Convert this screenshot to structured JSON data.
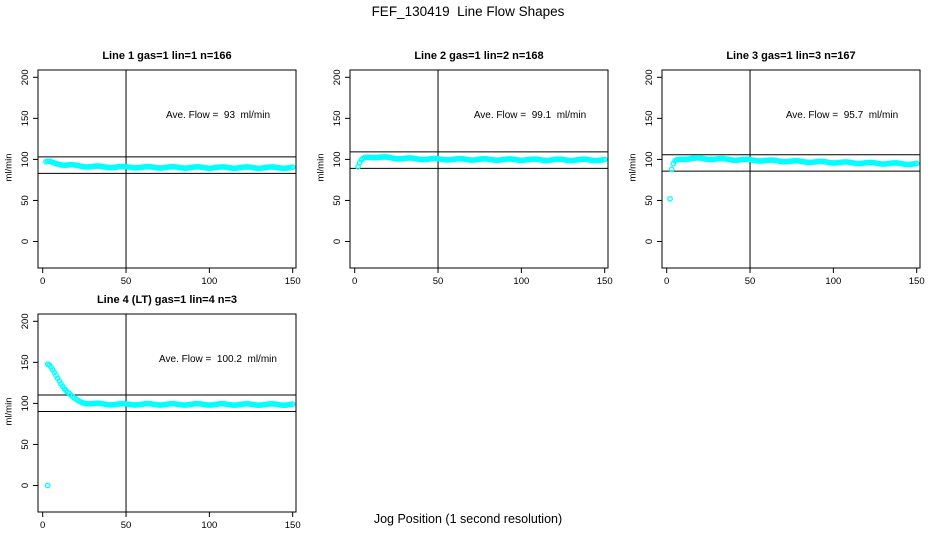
{
  "header": {
    "title": "FEF_130419  Line Flow Shapes"
  },
  "footer": {
    "xlabel": "Jog Position (1 second resolution)"
  },
  "colors": {
    "point": "#00FFFF",
    "line": "#000000",
    "text": "#000000",
    "background": "#ffffff"
  },
  "chart_data": [
    {
      "type": "scatter",
      "title": "Line 1 gas=1 lin=1 n=166",
      "annotation": "Ave. Flow =  93  ml/min",
      "ave_flow_ml_min": 93,
      "n": 166,
      "ylabel": "ml/min",
      "xlim": [
        0,
        150
      ],
      "ylim": [
        0,
        200
      ],
      "xticks": [
        0,
        50,
        100,
        150
      ],
      "yticks": [
        0,
        50,
        100,
        150,
        200
      ],
      "vline_x": 50,
      "hlines": [
        83,
        103
      ],
      "x_step": 1,
      "points_keypoints": [
        [
          2,
          96.5
        ],
        [
          3,
          97
        ],
        [
          4,
          97
        ],
        [
          5,
          96.5
        ],
        [
          7,
          95.5
        ],
        [
          10,
          94.5
        ],
        [
          13,
          93.5
        ],
        [
          16,
          93
        ],
        [
          20,
          92.3
        ],
        [
          25,
          91.7
        ],
        [
          30,
          91.3
        ],
        [
          40,
          90.8
        ],
        [
          50,
          90.6
        ],
        [
          60,
          90.4
        ],
        [
          80,
          90.2
        ],
        [
          100,
          90.1
        ],
        [
          120,
          90
        ],
        [
          150,
          90
        ]
      ],
      "outliers": []
    },
    {
      "type": "scatter",
      "title": "Line 2 gas=1 lin=2 n=168",
      "annotation": "Ave. Flow =  99.1  ml/min",
      "ave_flow_ml_min": 99.1,
      "n": 168,
      "ylabel": "ml/min",
      "xlim": [
        0,
        150
      ],
      "ylim": [
        0,
        200
      ],
      "xticks": [
        0,
        50,
        100,
        150
      ],
      "yticks": [
        0,
        50,
        100,
        150,
        200
      ],
      "vline_x": 50,
      "hlines": [
        89.1,
        109.1
      ],
      "x_step": 1,
      "points_keypoints": [
        [
          3,
          95.5
        ],
        [
          4,
          98.5
        ],
        [
          5,
          100.5
        ],
        [
          6,
          101.8
        ],
        [
          8,
          102.8
        ],
        [
          10,
          103
        ],
        [
          13,
          102.8
        ],
        [
          16,
          102.4
        ],
        [
          20,
          102
        ],
        [
          25,
          101.5
        ],
        [
          30,
          101.1
        ],
        [
          40,
          100.6
        ],
        [
          50,
          100.3
        ],
        [
          60,
          100.1
        ],
        [
          80,
          99.9
        ],
        [
          100,
          99.7
        ],
        [
          120,
          99.5
        ],
        [
          150,
          99.3
        ]
      ],
      "outliers": [
        [
          2,
          91
        ]
      ]
    },
    {
      "type": "scatter",
      "title": "Line 3 gas=1 lin=3 n=167",
      "annotation": "Ave. Flow =  95.7  ml/min",
      "ave_flow_ml_min": 95.7,
      "n": 167,
      "ylabel": "ml/min",
      "xlim": [
        0,
        150
      ],
      "ylim": [
        0,
        200
      ],
      "xticks": [
        0,
        50,
        100,
        150
      ],
      "yticks": [
        0,
        50,
        100,
        150,
        200
      ],
      "vline_x": 50,
      "hlines": [
        85.7,
        105.7
      ],
      "x_step": 1,
      "points_keypoints": [
        [
          3,
          87
        ],
        [
          4,
          94
        ],
        [
          5,
          97.5
        ],
        [
          6,
          99
        ],
        [
          8,
          100.3
        ],
        [
          10,
          100.8
        ],
        [
          15,
          101
        ],
        [
          20,
          101
        ],
        [
          30,
          100.4
        ],
        [
          40,
          99.8
        ],
        [
          50,
          99.2
        ],
        [
          60,
          98.6
        ],
        [
          70,
          98
        ],
        [
          80,
          97.4
        ],
        [
          90,
          96.9
        ],
        [
          100,
          96.4
        ],
        [
          110,
          96
        ],
        [
          120,
          95.6
        ],
        [
          135,
          95
        ],
        [
          150,
          94.5
        ]
      ],
      "outliers": [
        [
          2,
          52
        ]
      ]
    },
    {
      "type": "scatter",
      "title": "Line 4 (LT) gas=1 lin=4 n=3",
      "annotation": "Ave. Flow =  100.2  ml/min",
      "ave_flow_ml_min": 100.2,
      "n": 3,
      "ylabel": "ml/min",
      "xlim": [
        0,
        150
      ],
      "ylim": [
        0,
        200
      ],
      "xticks": [
        0,
        50,
        100,
        150
      ],
      "yticks": [
        0,
        50,
        100,
        150,
        200
      ],
      "vline_x": 50,
      "hlines": [
        90.2,
        110.2
      ],
      "x_step": 1,
      "points_keypoints": [
        [
          3,
          147
        ],
        [
          4,
          146
        ],
        [
          5,
          143.5
        ],
        [
          6,
          140.5
        ],
        [
          7,
          137.5
        ],
        [
          8,
          134.5
        ],
        [
          9,
          131
        ],
        [
          10,
          128
        ],
        [
          11,
          124.5
        ],
        [
          12,
          121.5
        ],
        [
          13,
          118.5
        ],
        [
          14,
          116
        ],
        [
          15,
          113.5
        ],
        [
          16,
          111.5
        ],
        [
          17,
          109.5
        ],
        [
          18,
          107.5
        ],
        [
          19,
          106
        ],
        [
          20,
          104.5
        ],
        [
          22,
          102.5
        ],
        [
          24,
          101.3
        ],
        [
          26,
          100.5
        ],
        [
          28,
          100
        ],
        [
          30,
          99.6
        ],
        [
          35,
          99.2
        ],
        [
          40,
          99
        ],
        [
          50,
          98.9
        ],
        [
          60,
          98.9
        ],
        [
          80,
          98.8
        ],
        [
          100,
          98.8
        ],
        [
          120,
          98.7
        ],
        [
          150,
          98.6
        ]
      ],
      "outliers": [
        [
          3,
          0
        ]
      ]
    }
  ]
}
